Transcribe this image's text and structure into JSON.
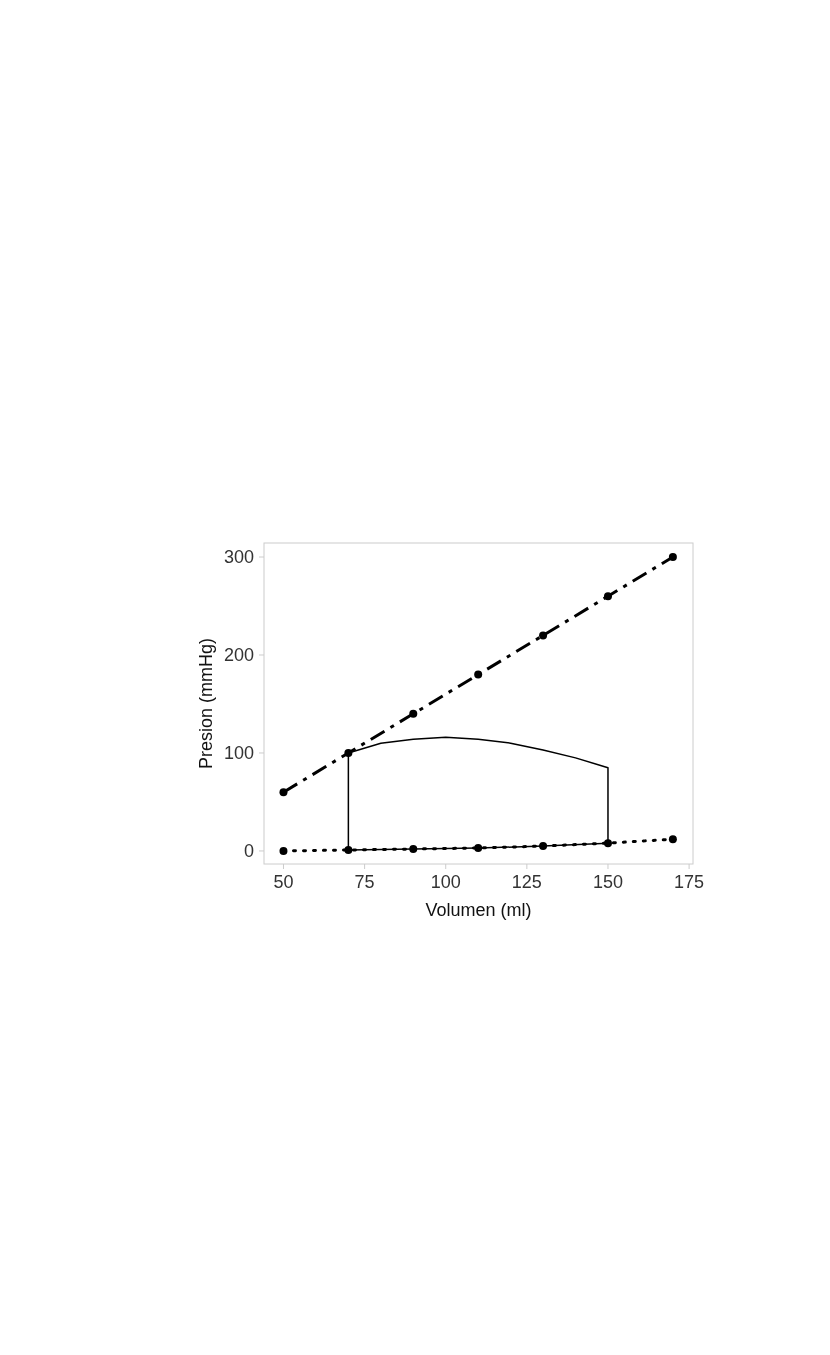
{
  "chart_data": {
    "type": "line",
    "xlabel": "Volumen (ml)",
    "ylabel": "Presion (mmHg)",
    "xlim": [
      44,
      176.2
    ],
    "xticks": [
      50,
      75,
      100,
      125,
      150,
      175
    ],
    "ylim": [
      -13.3,
      314.3
    ],
    "yticks": [
      0,
      100,
      200,
      300
    ],
    "grid": false,
    "series": [
      {
        "color": "#000000",
        "x": [
          50,
          70,
          90,
          110,
          130,
          150,
          170
        ],
        "values": [
          60,
          100,
          140,
          180,
          220,
          260,
          300
        ],
        "marker": "circle",
        "line_style": "dashed"
      },
      {
        "color": "#000000",
        "x": [
          50,
          70,
          90,
          110,
          130,
          150,
          170
        ],
        "values": [
          0,
          1,
          2,
          3,
          5,
          8,
          12
        ],
        "marker": "circle",
        "line_style": "dotted"
      },
      {
        "color": "#000000",
        "x": [
          70,
          70,
          80,
          90,
          100,
          110,
          120,
          130,
          140,
          150,
          150
        ],
        "values": [
          1,
          100,
          110,
          114,
          116,
          114,
          110,
          103,
          95,
          85,
          8
        ],
        "marker": "none",
        "line_style": "solid"
      },
      {
        "color": "#000000",
        "x": [
          70,
          90,
          110,
          130,
          150
        ],
        "values": [
          1,
          2,
          3,
          5,
          8
        ],
        "marker": "none",
        "line_style": "solid"
      }
    ]
  }
}
